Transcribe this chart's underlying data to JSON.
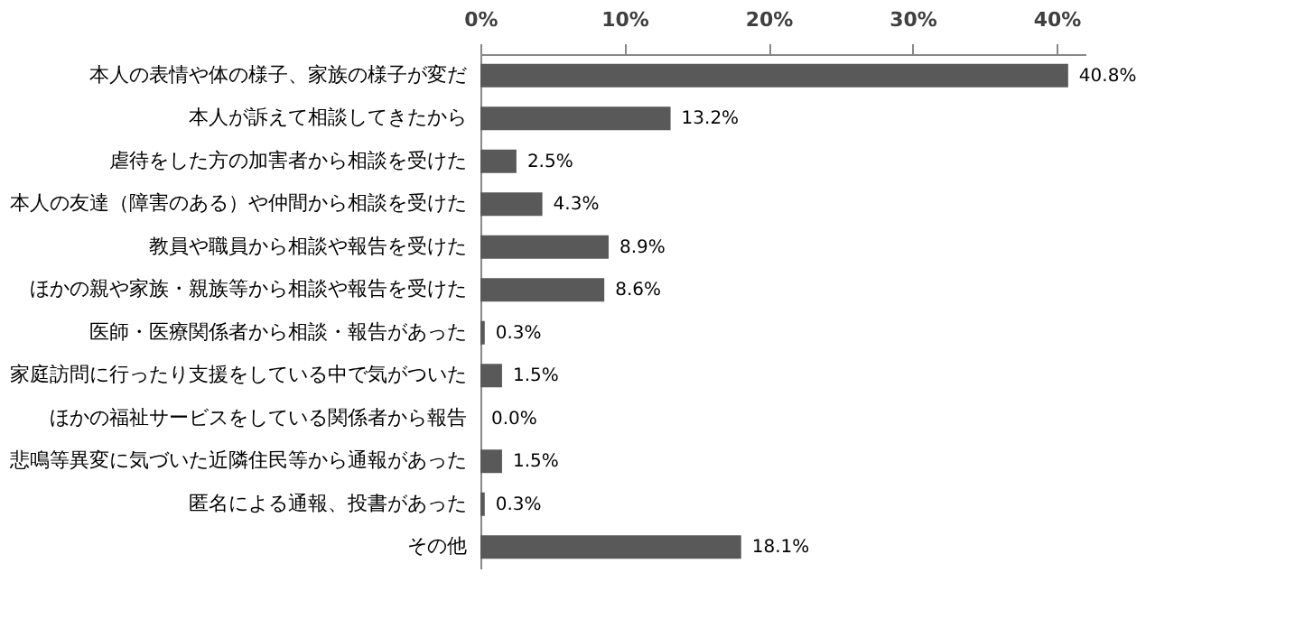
{
  "chart_data": {
    "type": "bar",
    "orientation": "horizontal",
    "categories": [
      "本人の表情や体の様子、家族の様子が変だ",
      "本人が訴えて相談してきたから",
      "虐待をした方の加害者から相談を受けた",
      "本人の友達（障害のある）や仲間から相談を受けた",
      "教員や職員から相談や報告を受けた",
      "ほかの親や家族・親族等から相談や報告を受けた",
      "医師・医療関係者から相談・報告があった",
      "家庭訪問に行ったり支援をしている中で気がついた",
      "ほかの福祉サービスをしている関係者から報告",
      "悲鳴等異変に気づいた近隣住民等から通報があった",
      "匿名による通報、投書があった",
      "その他"
    ],
    "values": [
      40.8,
      13.2,
      2.5,
      4.3,
      8.9,
      8.6,
      0.3,
      1.5,
      0.0,
      1.5,
      0.3,
      18.1
    ],
    "value_labels": [
      "40.8%",
      "13.2%",
      "2.5%",
      "4.3%",
      "8.9%",
      "8.6%",
      "0.3%",
      "1.5%",
      "0.0%",
      "1.5%",
      "0.3%",
      "18.1%"
    ],
    "color": "#595959",
    "xlim": [
      0,
      42
    ],
    "xticks": [
      {
        "value": 0,
        "label": "0%"
      },
      {
        "value": 10,
        "label": "10%"
      },
      {
        "value": 20,
        "label": "20%"
      },
      {
        "value": 30,
        "label": "30%"
      },
      {
        "value": 40,
        "label": "40%"
      }
    ],
    "grid": false
  }
}
